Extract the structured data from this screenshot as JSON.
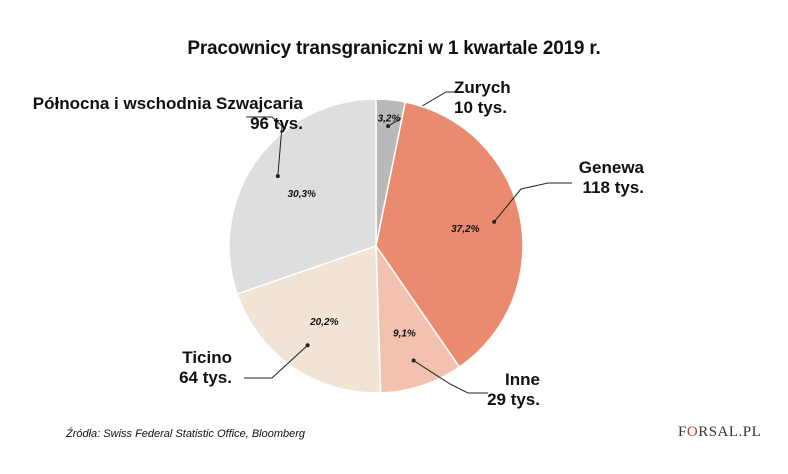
{
  "title": "Pracownicy transgraniczni w 1 kwartale 2019 r.",
  "chart_data": {
    "type": "pie",
    "title": "Pracownicy transgraniczni w 1 kwartale 2019 r.",
    "slices": [
      {
        "name": "Zurych",
        "value_label": "10 tys.",
        "value": 10,
        "percent": 3.2,
        "percent_label": "3,2%",
        "color": "#b9b9b9"
      },
      {
        "name": "Genewa",
        "value_label": "118 tys.",
        "value": 118,
        "percent": 37.2,
        "percent_label": "37,2%",
        "color": "#ea8a6e"
      },
      {
        "name": "Inne",
        "value_label": "29 tys.",
        "value": 29,
        "percent": 9.1,
        "percent_label": "9,1%",
        "color": "#f2c1b0"
      },
      {
        "name": "Ticino",
        "value_label": "64 tys.",
        "value": 64,
        "percent": 20.2,
        "percent_label": "20,2%",
        "color": "#f2e4d4"
      },
      {
        "name": "Północna i wschodnia Szwajcaria",
        "value_label": "96 tys.",
        "value": 96,
        "percent": 30.3,
        "percent_label": "30,3%",
        "color": "#dedede"
      }
    ],
    "start_angle": "top",
    "direction": "clockwise"
  },
  "source": "Źródła: Swiss Federal Statistic Office,  Bloomberg",
  "brand": {
    "left": "F",
    "mark": "O",
    "right": "RSAL",
    "suffix": ".PL"
  }
}
